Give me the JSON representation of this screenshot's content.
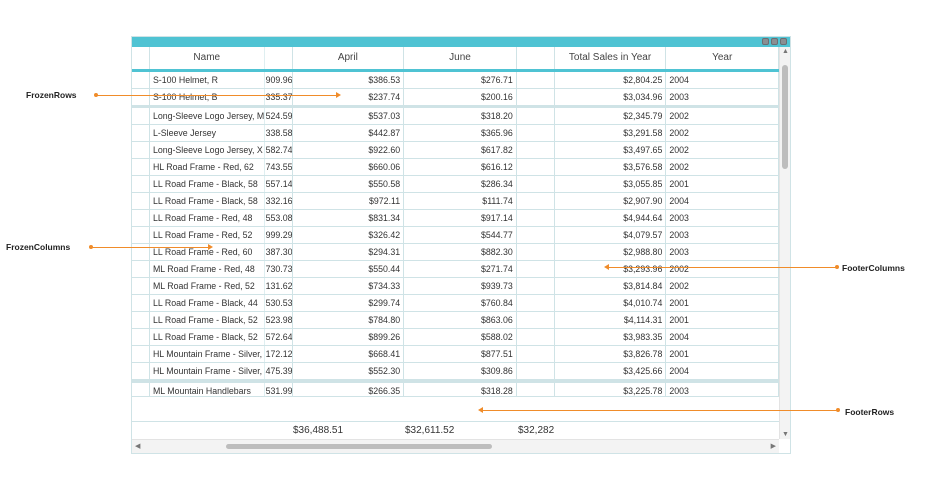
{
  "columns": {
    "name": "Name",
    "april": "April",
    "june": "June",
    "total": "Total Sales in Year",
    "year": "Year"
  },
  "rows": [
    {
      "name": "S-100 Helmet, R",
      "h": "909.96",
      "april": "$386.53",
      "june": "$276.71",
      "total": "$2,804.25",
      "year": "2004"
    },
    {
      "name": "S-100 Helmet, B",
      "h": "335.37",
      "april": "$237.74",
      "june": "$200.16",
      "total": "$3,034.96",
      "year": "2003"
    },
    {
      "name": "Long-Sleeve Logo Jersey, M",
      "h": "524.59",
      "april": "$537.03",
      "june": "$318.20",
      "total": "$2,345.79",
      "year": "2002"
    },
    {
      "name": "L-Sleeve Jersey",
      "h": "338.58",
      "april": "$442.87",
      "june": "$365.96",
      "total": "$3,291.58",
      "year": "2002"
    },
    {
      "name": "Long-Sleeve Logo Jersey, X",
      "h": "582.74",
      "april": "$922.60",
      "june": "$617.82",
      "total": "$3,497.65",
      "year": "2002"
    },
    {
      "name": "HL Road Frame - Red, 62",
      "h": "743.55",
      "april": "$660.06",
      "june": "$616.12",
      "total": "$3,576.58",
      "year": "2002"
    },
    {
      "name": "LL Road Frame - Black, 58",
      "h": "557.14",
      "april": "$550.58",
      "june": "$286.34",
      "total": "$3,055.85",
      "year": "2001"
    },
    {
      "name": "LL Road Frame - Black, 58",
      "h": "332.16",
      "april": "$972.11",
      "june": "$111.74",
      "total": "$2,907.90",
      "year": "2004"
    },
    {
      "name": "LL Road Frame - Red, 48",
      "h": "553.08",
      "april": "$831.34",
      "june": "$917.14",
      "total": "$4,944.64",
      "year": "2003"
    },
    {
      "name": "LL Road Frame - Red, 52",
      "h": "999.29",
      "april": "$326.42",
      "june": "$544.77",
      "total": "$4,079.57",
      "year": "2003"
    },
    {
      "name": "LL Road Frame - Red, 60",
      "h": "387.30",
      "april": "$294.31",
      "june": "$882.30",
      "total": "$2,988.80",
      "year": "2003"
    },
    {
      "name": "ML Road Frame - Red, 48",
      "h": "730.73",
      "april": "$550.44",
      "june": "$271.74",
      "total": "$3,293.96",
      "year": "2002"
    },
    {
      "name": "ML Road Frame - Red, 52",
      "h": "131.62",
      "april": "$734.33",
      "june": "$939.73",
      "total": "$3,814.84",
      "year": "2002"
    },
    {
      "name": "LL Road Frame - Black, 44",
      "h": "530.53",
      "april": "$299.74",
      "june": "$760.84",
      "total": "$4,010.74",
      "year": "2001"
    },
    {
      "name": "LL Road Frame - Black, 52",
      "h": "523.98",
      "april": "$784.80",
      "june": "$863.06",
      "total": "$4,114.31",
      "year": "2001"
    },
    {
      "name": "LL Road Frame - Black, 52",
      "h": "572.64",
      "april": "$899.26",
      "june": "$588.02",
      "total": "$3,983.35",
      "year": "2004"
    },
    {
      "name": "HL Mountain Frame - Silver,",
      "h": "172.12",
      "april": "$668.41",
      "june": "$877.51",
      "total": "$3,826.78",
      "year": "2001"
    },
    {
      "name": "HL Mountain Frame - Silver,",
      "h": "475.39",
      "april": "$552.30",
      "june": "$309.86",
      "total": "$3,425.66",
      "year": "2004"
    }
  ],
  "footer_row": {
    "name": "ML Mountain Handlebars",
    "h": "531.99",
    "april": "$266.35",
    "june": "$318.28",
    "total": "$3,225.78",
    "year": "2003"
  },
  "summary": {
    "april": "$36,488.51",
    "june": "$32,611.52",
    "extra": "$32,282"
  },
  "callouts": {
    "frozen_rows": "FrozenRows",
    "frozen_columns": "FrozenColumns",
    "footer_columns": "FooterColumns",
    "footer_rows": "FooterRows"
  },
  "colors": {
    "accent": "#4fc3d3",
    "callout_line": "#f08c2a",
    "grid_line": "#cfe3e6"
  }
}
